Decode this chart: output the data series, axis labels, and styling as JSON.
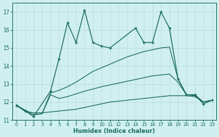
{
  "xlabel": "Humidex (Indice chaleur)",
  "ylim": [
    11,
    17.5
  ],
  "xlim": [
    -0.5,
    23.5
  ],
  "color": "#1a6b5a",
  "bg_color": "#d0f0f0",
  "grid_color": "#c0dede",
  "main_x": [
    0,
    1,
    2,
    4,
    5,
    6,
    7,
    8,
    9,
    10,
    11,
    14,
    15,
    16,
    17,
    18,
    19,
    20,
    21,
    22,
    23
  ],
  "main_y": [
    11.8,
    11.5,
    11.2,
    12.6,
    14.4,
    16.4,
    15.3,
    17.1,
    15.3,
    15.1,
    15.0,
    16.1,
    15.3,
    15.3,
    17.0,
    16.1,
    13.3,
    12.4,
    12.4,
    11.9,
    12.1
  ],
  "env1_x": [
    0,
    2,
    3,
    4,
    5,
    6,
    7,
    8,
    9,
    10,
    11,
    12,
    13,
    14,
    15,
    16,
    17,
    18,
    19,
    20,
    21,
    22,
    23
  ],
  "env1_y": [
    11.8,
    11.3,
    11.35,
    12.5,
    12.65,
    12.85,
    13.1,
    13.4,
    13.7,
    13.9,
    14.1,
    14.3,
    14.5,
    14.65,
    14.8,
    14.9,
    15.0,
    15.05,
    13.3,
    12.4,
    12.4,
    12.0,
    12.1
  ],
  "env2_x": [
    0,
    2,
    3,
    4,
    5,
    6,
    7,
    8,
    9,
    10,
    11,
    12,
    13,
    14,
    15,
    16,
    17,
    18,
    19,
    20,
    21,
    22,
    23
  ],
  "env2_y": [
    11.8,
    11.3,
    11.35,
    12.4,
    12.2,
    12.3,
    12.45,
    12.6,
    12.72,
    12.85,
    12.95,
    13.05,
    13.15,
    13.25,
    13.35,
    13.45,
    13.5,
    13.55,
    13.1,
    12.4,
    12.35,
    12.0,
    12.1
  ],
  "env3_x": [
    0,
    1,
    2,
    3,
    4,
    5,
    6,
    7,
    8,
    9,
    10,
    11,
    12,
    13,
    14,
    15,
    16,
    17,
    18,
    20,
    21,
    22,
    23
  ],
  "env3_y": [
    11.85,
    11.5,
    11.4,
    11.4,
    11.45,
    11.5,
    11.55,
    11.6,
    11.7,
    11.8,
    11.9,
    12.0,
    12.05,
    12.1,
    12.15,
    12.2,
    12.25,
    12.3,
    12.35,
    12.35,
    12.3,
    12.0,
    12.1
  ]
}
